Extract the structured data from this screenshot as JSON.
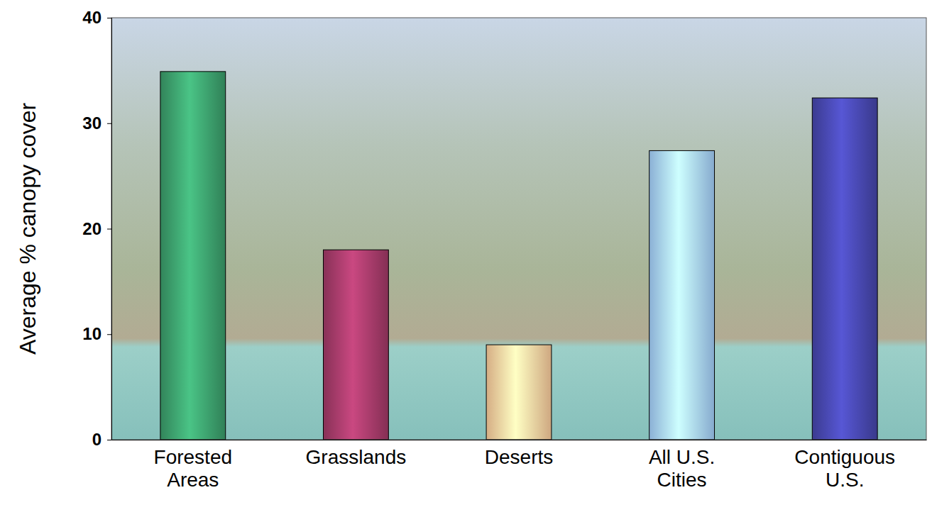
{
  "chart_data": {
    "type": "bar",
    "y_label": "Average % canopy cover",
    "categories": [
      "Forested Areas",
      "Grasslands",
      "Deserts",
      "All U.S. Cities",
      "Contiguous U.S."
    ],
    "values": [
      34.9,
      18,
      9,
      27.4,
      32.4
    ],
    "colors": [
      "#3c9e6c",
      "#a33a68",
      "#ffcf9e",
      "#a6d2ff",
      "#4646ac"
    ],
    "ylim": [
      0,
      40
    ],
    "yticks": [
      0,
      10,
      20,
      30,
      40
    ],
    "grid": false
  }
}
